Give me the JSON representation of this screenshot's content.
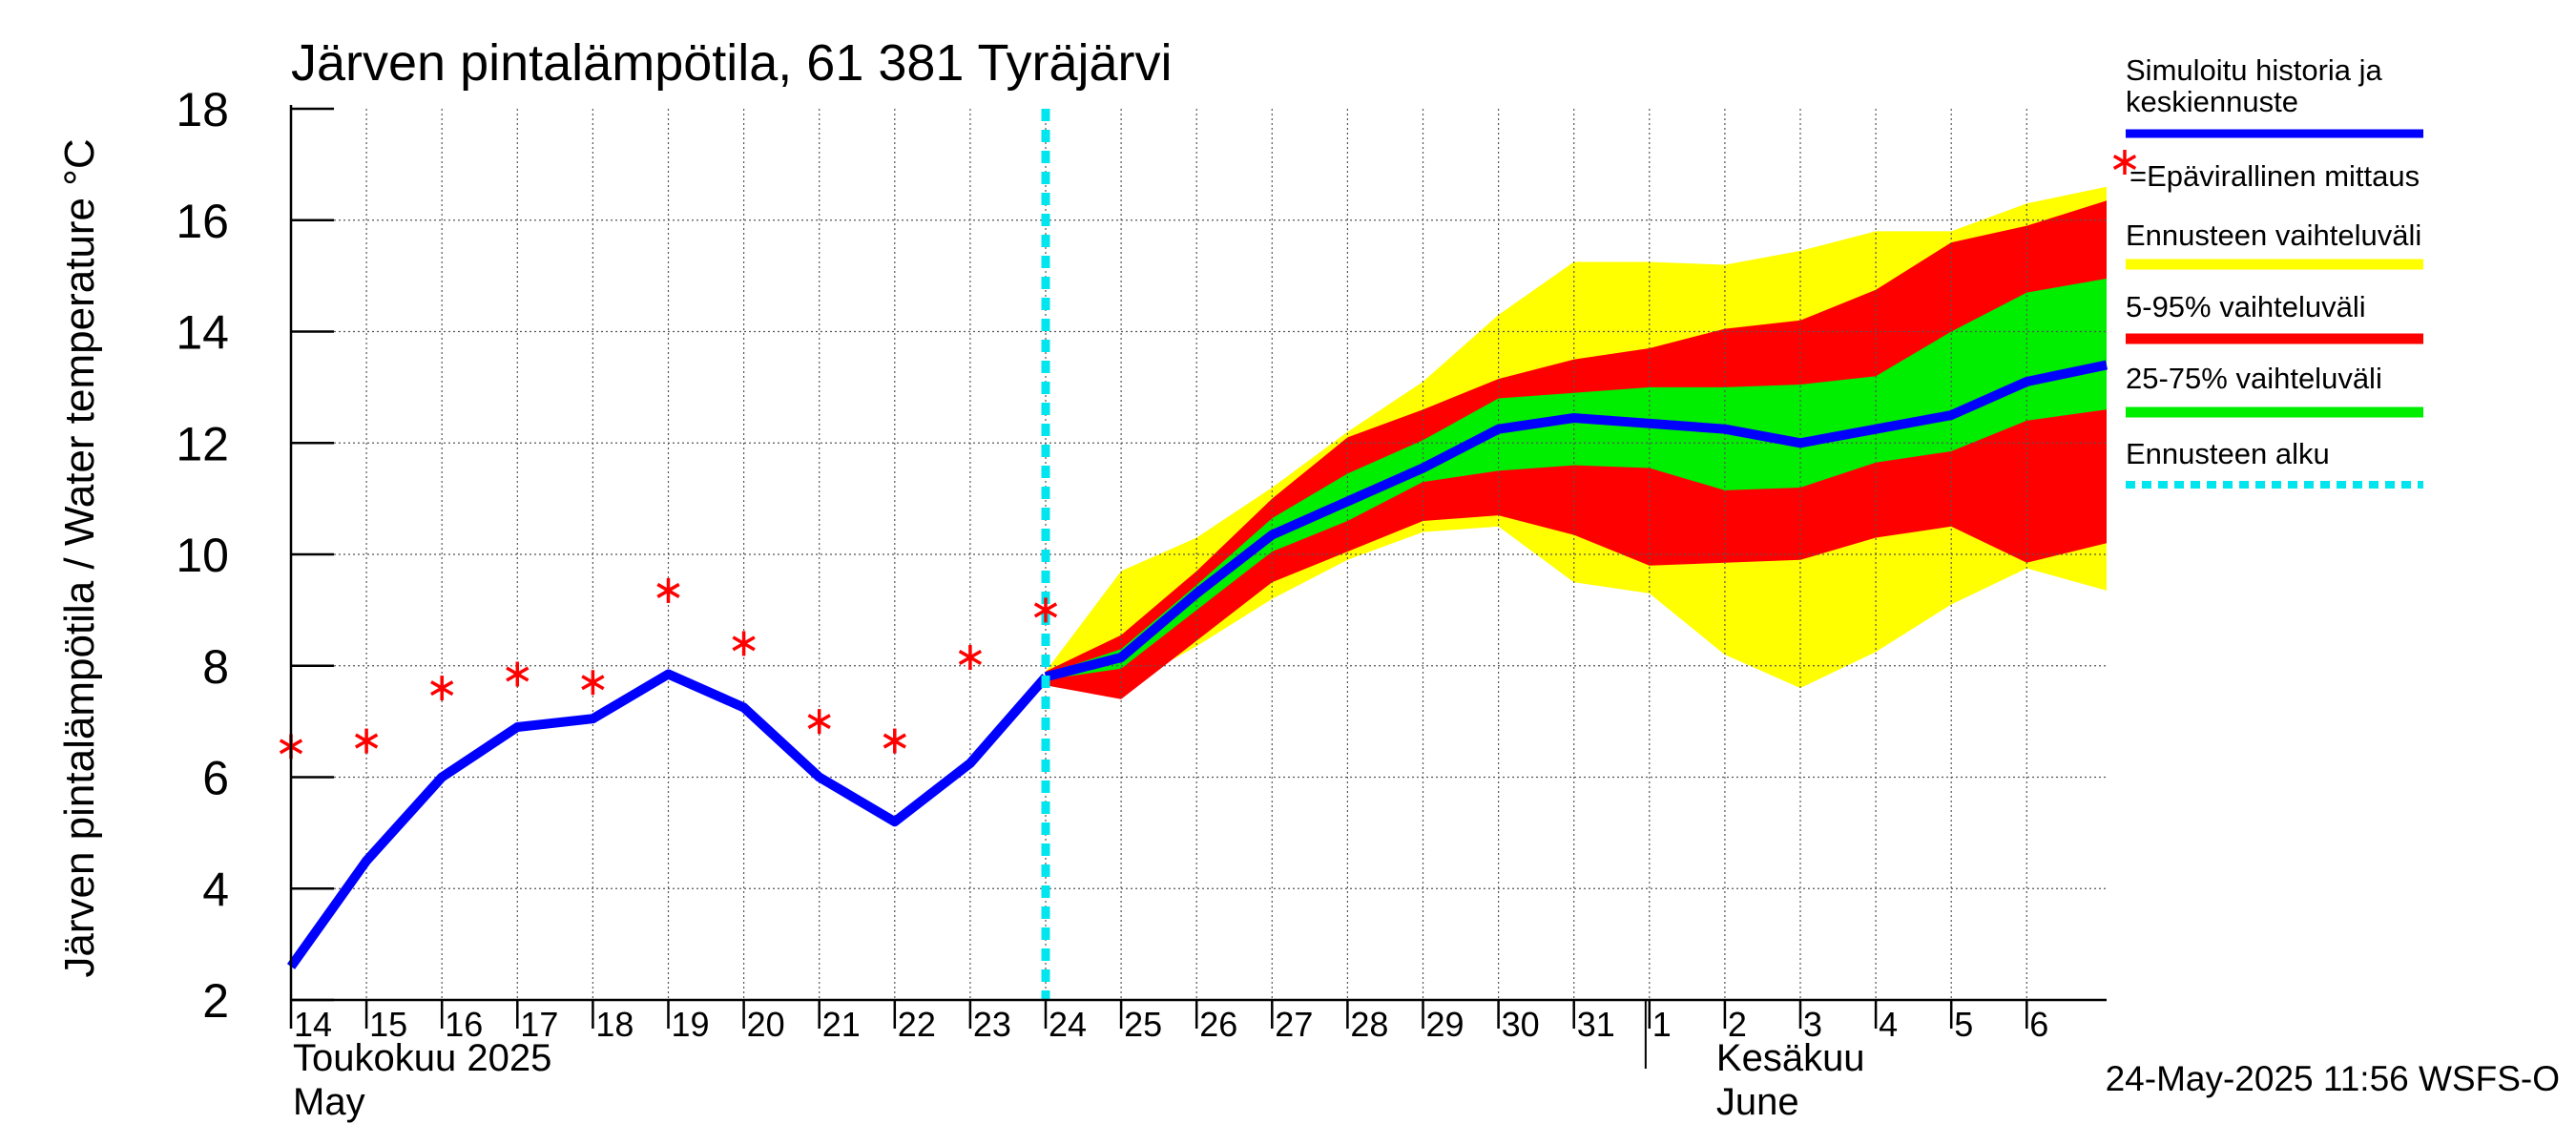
{
  "chart_data": {
    "type": "line",
    "title": "Järven pintalämpötila, 61 381 Tyräjärvi",
    "ylabel": "Järven pintalämpötila / Water temperature °C",
    "ylim": [
      2,
      18
    ],
    "yticks": [
      2,
      4,
      6,
      8,
      10,
      12,
      14,
      16,
      18
    ],
    "x_start": "2025-05-14",
    "x_end": "2025-06-06",
    "x_tick_labels": [
      "14",
      "15",
      "16",
      "17",
      "18",
      "19",
      "20",
      "21",
      "22",
      "23",
      "24",
      "25",
      "26",
      "27",
      "28",
      "29",
      "30",
      "31",
      "1",
      "2",
      "3",
      "4",
      "5",
      "6"
    ],
    "month_labels": [
      {
        "fi": "Toukokuu  2025",
        "en": "May"
      },
      {
        "fi": "Kesäkuu",
        "en": "June"
      }
    ],
    "grid": true,
    "forecast_start": "2025-05-24",
    "history": {
      "name": "Simuloitu historia ja keskiennuste",
      "color": "#0000ff",
      "x": [
        "2025-05-14",
        "2025-05-15",
        "2025-05-16",
        "2025-05-17",
        "2025-05-18",
        "2025-05-19",
        "2025-05-20",
        "2025-05-21",
        "2025-05-22",
        "2025-05-23",
        "2025-05-24"
      ],
      "y": [
        2.6,
        4.5,
        6.0,
        6.9,
        7.05,
        7.85,
        7.25,
        6.0,
        5.2,
        6.25,
        7.8
      ]
    },
    "median_forecast": {
      "x": [
        "2025-05-24",
        "2025-05-25",
        "2025-05-26",
        "2025-05-27",
        "2025-05-28",
        "2025-05-29",
        "2025-05-30",
        "2025-05-31",
        "2025-06-01",
        "2025-06-02",
        "2025-06-03",
        "2025-06-04",
        "2025-06-05",
        "2025-06-06"
      ],
      "y": [
        7.8,
        8.15,
        9.3,
        10.35,
        10.95,
        11.55,
        12.25,
        12.45,
        12.35,
        12.25,
        12.0,
        12.25,
        12.5,
        13.1
      ]
    },
    "x_end_value": 13.4,
    "bands": [
      {
        "name": "Ennusteen vaihteluväli",
        "color": "#ffff00",
        "upper": [
          7.9,
          9.7,
          10.3,
          11.2,
          12.2,
          13.1,
          14.3,
          15.25,
          15.25,
          15.2,
          15.45,
          15.8,
          15.8,
          16.3
        ],
        "lower": [
          7.7,
          7.6,
          8.35,
          9.2,
          9.9,
          10.4,
          10.5,
          9.5,
          9.3,
          8.2,
          7.6,
          8.25,
          9.1,
          9.75
        ],
        "upper_end": 16.6,
        "lower_end": 9.35
      },
      {
        "name": "5-95% vaihteluväli",
        "color": "#ff0000",
        "upper": [
          7.9,
          8.55,
          9.7,
          11.0,
          12.1,
          12.6,
          13.15,
          13.5,
          13.7,
          14.05,
          14.2,
          14.75,
          15.6,
          15.9
        ],
        "lower": [
          7.65,
          7.4,
          8.45,
          9.5,
          10.05,
          10.6,
          10.7,
          10.35,
          9.8,
          9.85,
          9.9,
          10.3,
          10.5,
          9.85
        ],
        "upper_end": 16.35,
        "lower_end": 10.2
      },
      {
        "name": "25-75% vaihteluväli",
        "color": "#00ee00",
        "upper": [
          7.85,
          8.3,
          9.45,
          10.65,
          11.45,
          12.05,
          12.8,
          12.9,
          13.0,
          13.0,
          13.05,
          13.2,
          14.0,
          14.7
        ],
        "lower": [
          7.75,
          7.95,
          9.0,
          10.05,
          10.6,
          11.3,
          11.5,
          11.6,
          11.55,
          11.15,
          11.2,
          11.65,
          11.85,
          12.4
        ],
        "upper_end": 14.95,
        "lower_end": 12.6
      }
    ],
    "observations": {
      "name": "=Epävirallinen mittaus",
      "color": "#ff0000",
      "x": [
        "2025-05-14",
        "2025-05-15",
        "2025-05-16",
        "2025-05-17",
        "2025-05-18",
        "2025-05-19",
        "2025-05-20",
        "2025-05-21",
        "2025-05-22",
        "2025-05-23",
        "2025-05-24"
      ],
      "y": [
        6.55,
        6.65,
        7.6,
        7.85,
        7.7,
        9.35,
        8.4,
        7.0,
        6.65,
        8.15,
        9.0
      ]
    },
    "legend": [
      {
        "key": "history",
        "label": "Simuloitu historia ja keskiennuste",
        "color": "#0000ff",
        "style": "line"
      },
      {
        "key": "obs",
        "label": "=Epävirallinen mittaus",
        "color": "#ff0000",
        "style": "star"
      },
      {
        "key": "yellow",
        "label": "Ennusteen vaihteluväli",
        "color": "#ffff00",
        "style": "line"
      },
      {
        "key": "red",
        "label": "5-95% vaihteluväli",
        "color": "#ff0000",
        "style": "line"
      },
      {
        "key": "green",
        "label": "25-75% vaihteluväli",
        "color": "#00ee00",
        "style": "line"
      },
      {
        "key": "start",
        "label": "Ennusteen alku",
        "color": "#00e5ee",
        "style": "dashed"
      }
    ],
    "footer": "24-May-2025 11:56 WSFS-O"
  }
}
